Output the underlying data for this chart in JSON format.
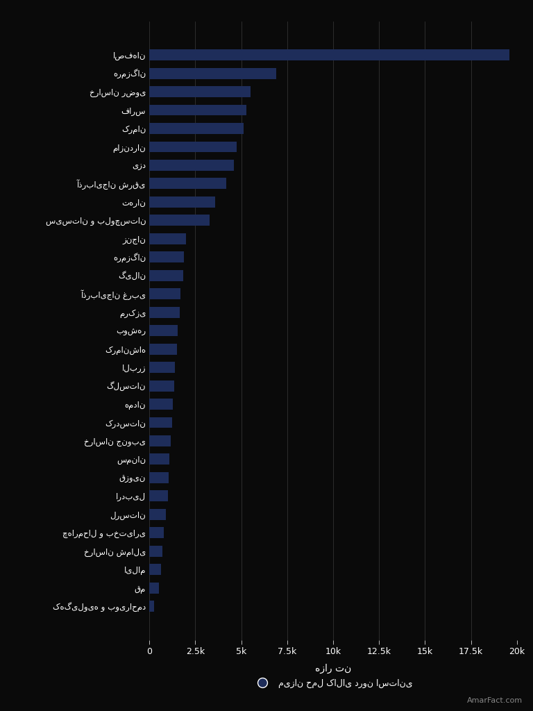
{
  "categories": [
    "کهگیلویه و بویراحمد",
    "قم",
    "ایلام",
    "خراسان شمالی",
    "چهارمحال و بختیاری",
    "لرستان",
    "اردبیل",
    "قزوین",
    "سمنان",
    "خراسان جنوبی",
    "کردستان",
    "همدان",
    "گلستان",
    "البرز",
    "کرمانشاه",
    "بوشهر",
    "مرکزی",
    "آذربایجان غربی",
    "گیلان",
    "هرمزگان",
    "زنجان",
    "سیستان و بلوچستان",
    "تهران",
    "آذربایجان شرقی",
    "یزد",
    "مازندران",
    "کرمان",
    "فارس",
    "خراسان رضوی",
    "هرمزگان",
    "اصفهان"
  ],
  "values": [
    280,
    530,
    630,
    720,
    800,
    900,
    1000,
    1050,
    1100,
    1150,
    1250,
    1300,
    1350,
    1400,
    1500,
    1550,
    1650,
    1700,
    1850,
    1900,
    2000,
    3300,
    3600,
    4200,
    4600,
    4750,
    5150,
    5300,
    5500,
    6900,
    19600
  ],
  "bar_color": "#1e2d5a",
  "background_color": "#0a0a0a",
  "text_color": "#ffffff",
  "grid_color": "#333333",
  "xlabel": "هزار تن",
  "legend_label": "میزان حمل کالای درون استانی",
  "xlim": [
    0,
    20000
  ],
  "xtick_values": [
    0,
    2500,
    5000,
    7500,
    10000,
    12500,
    15000,
    17500,
    20000
  ],
  "xtick_labels": [
    "0",
    "2.5k",
    "5k",
    "7.5k",
    "10k",
    "12.5k",
    "15k",
    "17.5k",
    "20k"
  ],
  "watermark": "AmarFact.com"
}
